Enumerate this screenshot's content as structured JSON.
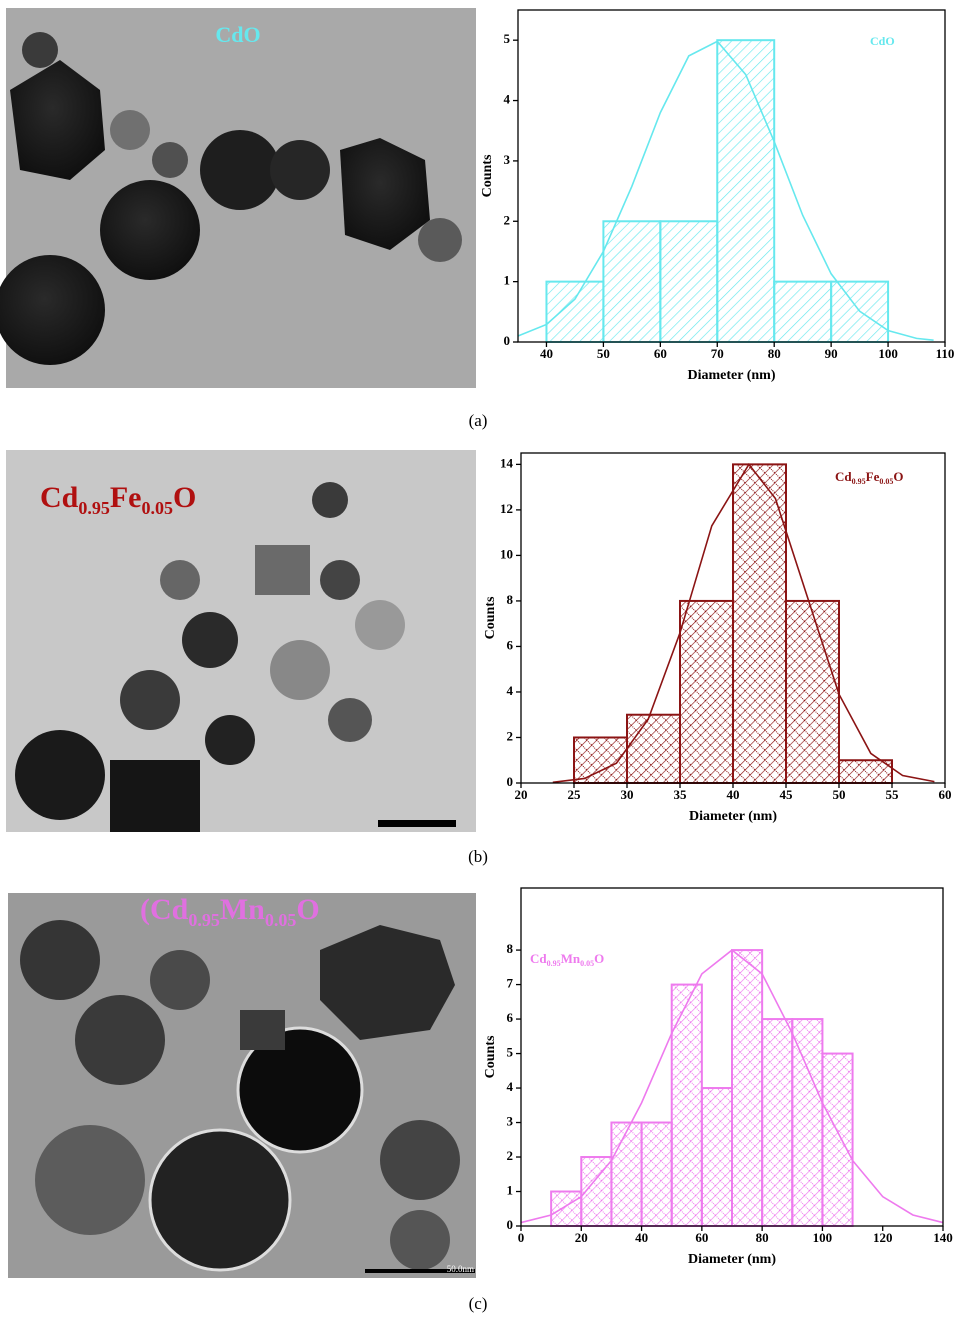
{
  "chart_data": [
    {
      "type": "histogram",
      "color": "#66e8ee",
      "xlabel": "Diameter (nm)",
      "ylabel": "Counts",
      "label": [
        {
          "text": "CdO"
        }
      ],
      "bins": [
        40,
        50,
        60,
        70,
        80,
        90,
        100
      ],
      "values": [
        1,
        2,
        2,
        5,
        1,
        1
      ],
      "fit": {
        "x": [
          35,
          40,
          45,
          50,
          55,
          60,
          65,
          70,
          75,
          80,
          85,
          90,
          95,
          100,
          105,
          108
        ],
        "y": [
          0.1,
          0.29,
          0.71,
          1.5,
          2.58,
          3.8,
          4.74,
          4.98,
          4.43,
          3.32,
          2.1,
          1.13,
          0.51,
          0.19,
          0.06,
          0.03
        ]
      },
      "xlim": [
        35,
        110
      ],
      "xticks": [
        40,
        50,
        60,
        70,
        80,
        90,
        100,
        110
      ],
      "ylim": [
        0,
        5.5
      ],
      "yticks": [
        0,
        1,
        2,
        3,
        4,
        5
      ]
    },
    {
      "type": "histogram",
      "color": "#8b1414",
      "xlabel": "Diameter (nm)",
      "ylabel": "Counts",
      "label": [
        {
          "text": "Cd"
        },
        {
          "text": "0.95",
          "sub": true
        },
        {
          "text": "Fe"
        },
        {
          "text": "0.05",
          "sub": true
        },
        {
          "text": "O"
        }
      ],
      "bins": [
        25,
        30,
        35,
        40,
        45,
        50,
        55
      ],
      "values": [
        2,
        3,
        8,
        14,
        8,
        1
      ],
      "fit": {
        "x": [
          23,
          26,
          29,
          32,
          35,
          38,
          41.5,
          44,
          47,
          50,
          53,
          56,
          59
        ],
        "y": [
          0.03,
          0.2,
          0.87,
          2.8,
          6.6,
          11.3,
          14,
          12.5,
          8.2,
          3.9,
          1.3,
          0.33,
          0.06
        ]
      },
      "xlim": [
        20,
        60
      ],
      "xticks": [
        20,
        25,
        30,
        35,
        40,
        45,
        50,
        55,
        60
      ],
      "ylim": [
        0,
        14.5
      ],
      "yticks": [
        0,
        2,
        4,
        6,
        8,
        10,
        12,
        14
      ]
    },
    {
      "type": "histogram",
      "color": "#ee7aee",
      "xlabel": "Diameter (nm)",
      "ylabel": "Counts",
      "label": [
        {
          "text": "Cd"
        },
        {
          "text": "0.95",
          "sub": true
        },
        {
          "text": "Mn"
        },
        {
          "text": "0.05",
          "sub": true
        },
        {
          "text": "O"
        }
      ],
      "bins": [
        10,
        20,
        30,
        40,
        50,
        60,
        70,
        80,
        90,
        100,
        110
      ],
      "values": [
        1,
        2,
        3,
        3,
        7,
        4,
        8,
        6,
        6,
        5
      ],
      "fit": {
        "x": [
          0,
          10,
          20,
          30,
          40,
          50,
          60,
          70,
          80,
          90,
          100,
          110,
          120,
          130,
          140
        ],
        "y": [
          0.1,
          0.32,
          0.85,
          1.9,
          3.57,
          5.59,
          7.31,
          8,
          7.31,
          5.59,
          3.57,
          1.9,
          0.85,
          0.32,
          0.1
        ]
      },
      "xlim": [
        0,
        140
      ],
      "xticks": [
        0,
        20,
        40,
        60,
        80,
        100,
        120,
        140
      ],
      "ylim": [
        0,
        9.8
      ],
      "yticks": [
        0,
        1,
        2,
        3,
        4,
        5,
        6,
        7,
        8
      ]
    }
  ],
  "panels": [
    {
      "label": "(a)",
      "image_label": [
        {
          "text": "CdO"
        }
      ]
    },
    {
      "label": "(b)",
      "image_label": [
        {
          "text": "Cd"
        },
        {
          "text": "0.95",
          "sub": true
        },
        {
          "text": "Fe"
        },
        {
          "text": "0.05",
          "sub": true
        },
        {
          "text": "O"
        }
      ]
    },
    {
      "label": "(c)",
      "image_label": [
        {
          "text": "(Cd"
        },
        {
          "text": "0.95",
          "sub": true
        },
        {
          "text": "Mn"
        },
        {
          "text": "0.05",
          "sub": true
        },
        {
          "text": "O"
        }
      ],
      "scale_bar_label": "50.0nm"
    }
  ]
}
